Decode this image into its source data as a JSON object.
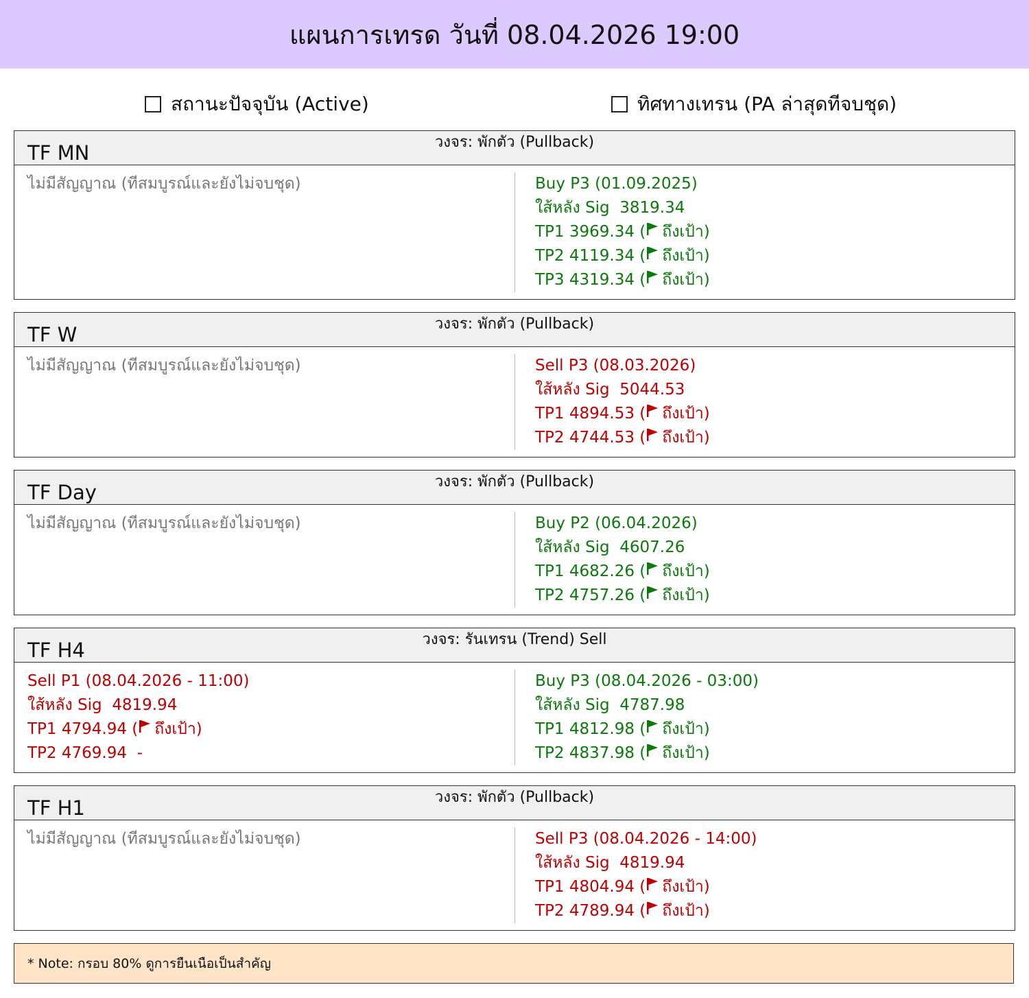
{
  "title": "แผนการเทรด วันที่ 08.04.2026 19:00",
  "colors": {
    "header_bg": "#dcc9fd",
    "buy": "#0a7a0a",
    "sell": "#c00000",
    "none": "#777777",
    "note_bg": "#ffe4c8"
  },
  "status": {
    "active_label": "สถานะปัจจุบัน (Active)",
    "trend_label": "ทิศทางเทรน (PA ล่าสุดทีจบชุด)"
  },
  "sections": [
    {
      "tf": "TF MN",
      "cycle": "วงจร: พักตัว (Pullback)",
      "left": [
        {
          "text": "ไม่มีสัญญาณ (ทีสมบูรณ์และยังไม่จบชุด)",
          "kind": "none"
        }
      ],
      "right": [
        {
          "text": "Buy P3 (01.09.2025)",
          "kind": "buy"
        },
        {
          "text": "ใส้หลัง Sig  3819.34",
          "kind": "buy"
        },
        {
          "text": "TP1 3969.34 (",
          "flag": true,
          "post": "ถึงเป้า)",
          "kind": "buy"
        },
        {
          "text": "TP2 4119.34 (",
          "flag": true,
          "post": "ถึงเป้า)",
          "kind": "buy"
        },
        {
          "text": "TP3 4319.34 (",
          "flag": true,
          "post": "ถึงเป้า)",
          "kind": "buy"
        }
      ]
    },
    {
      "tf": "TF W",
      "cycle": "วงจร: พักตัว (Pullback)",
      "left": [
        {
          "text": "ไม่มีสัญญาณ (ทีสมบูรณ์และยังไม่จบชุด)",
          "kind": "none"
        }
      ],
      "right": [
        {
          "text": "Sell P3 (08.03.2026)",
          "kind": "sell"
        },
        {
          "text": "ใส้หลัง Sig  5044.53",
          "kind": "sell"
        },
        {
          "text": "TP1 4894.53 (",
          "flag": true,
          "post": "ถึงเป้า)",
          "kind": "sell"
        },
        {
          "text": "TP2 4744.53 (",
          "flag": true,
          "post": "ถึงเป้า)",
          "kind": "sell"
        }
      ]
    },
    {
      "tf": "TF Day",
      "cycle": "วงจร: พักตัว (Pullback)",
      "left": [
        {
          "text": "ไม่มีสัญญาณ (ทีสมบูรณ์และยังไม่จบชุด)",
          "kind": "none"
        }
      ],
      "right": [
        {
          "text": "Buy P2 (06.04.2026)",
          "kind": "buy"
        },
        {
          "text": "ใส้หลัง Sig  4607.26",
          "kind": "buy"
        },
        {
          "text": "TP1 4682.26 (",
          "flag": true,
          "post": "ถึงเป้า)",
          "kind": "buy"
        },
        {
          "text": "TP2 4757.26 (",
          "flag": true,
          "post": "ถึงเป้า)",
          "kind": "buy"
        }
      ]
    },
    {
      "tf": "TF H4",
      "cycle": "วงจร: รันเทรน (Trend) Sell",
      "left": [
        {
          "text": "Sell P1 (08.04.2026 - 11:00)",
          "kind": "sell"
        },
        {
          "text": "ใส้หลัง Sig  4819.94",
          "kind": "sell"
        },
        {
          "text": "TP1 4794.94 (",
          "flag": true,
          "post": "ถึงเป้า)",
          "kind": "sell"
        },
        {
          "text": "TP2 4769.94  -",
          "kind": "sell"
        }
      ],
      "right": [
        {
          "text": "Buy P3 (08.04.2026 - 03:00)",
          "kind": "buy"
        },
        {
          "text": "ใส้หลัง Sig  4787.98",
          "kind": "buy"
        },
        {
          "text": "TP1 4812.98 (",
          "flag": true,
          "post": "ถึงเป้า)",
          "kind": "buy"
        },
        {
          "text": "TP2 4837.98 (",
          "flag": true,
          "post": "ถึงเป้า)",
          "kind": "buy"
        }
      ]
    },
    {
      "tf": "TF H1",
      "cycle": "วงจร: พักตัว (Pullback)",
      "left": [
        {
          "text": "ไม่มีสัญญาณ (ทีสมบูรณ์และยังไม่จบชุด)",
          "kind": "none"
        }
      ],
      "right": [
        {
          "text": "Sell P3 (08.04.2026 - 14:00)",
          "kind": "sell"
        },
        {
          "text": "ใส้หลัง Sig  4819.94",
          "kind": "sell"
        },
        {
          "text": "TP1 4804.94 (",
          "flag": true,
          "post": "ถึงเป้า)",
          "kind": "sell"
        },
        {
          "text": "TP2 4789.94 (",
          "flag": true,
          "post": "ถึงเป้า)",
          "kind": "sell"
        }
      ]
    }
  ],
  "note": "* Note: กรอบ 80% ดูการยืนเนือเป็นสำคัญ"
}
